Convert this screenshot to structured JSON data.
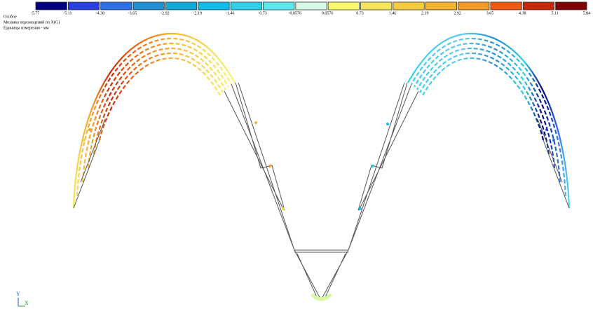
{
  "header": {
    "title": "Особое",
    "subtitle": "Мозаика перемещений по X(G)",
    "units": "Единицы измерения - мм"
  },
  "legend": {
    "bounds": [
      -5.77,
      -5.11,
      -4.38,
      -3.65,
      -2.92,
      -2.19,
      -1.46,
      -0.73,
      -0.0576,
      0.0576,
      0.73,
      1.46,
      2.19,
      2.92,
      3.65,
      4.38,
      5.11,
      5.84
    ],
    "colors": [
      "#00007f",
      "#2a3fe0",
      "#2f6fe8",
      "#1f8fd0",
      "#12a8d8",
      "#10bde8",
      "#30d0ea",
      "#60e8f0",
      "#d8fbe8",
      "#fafa70",
      "#f6e45a",
      "#f5cc40",
      "#f4b430",
      "#f39a28",
      "#ef5a10",
      "#c82808",
      "#800000"
    ]
  },
  "axes": {
    "y": "Y",
    "x": "X"
  }
}
